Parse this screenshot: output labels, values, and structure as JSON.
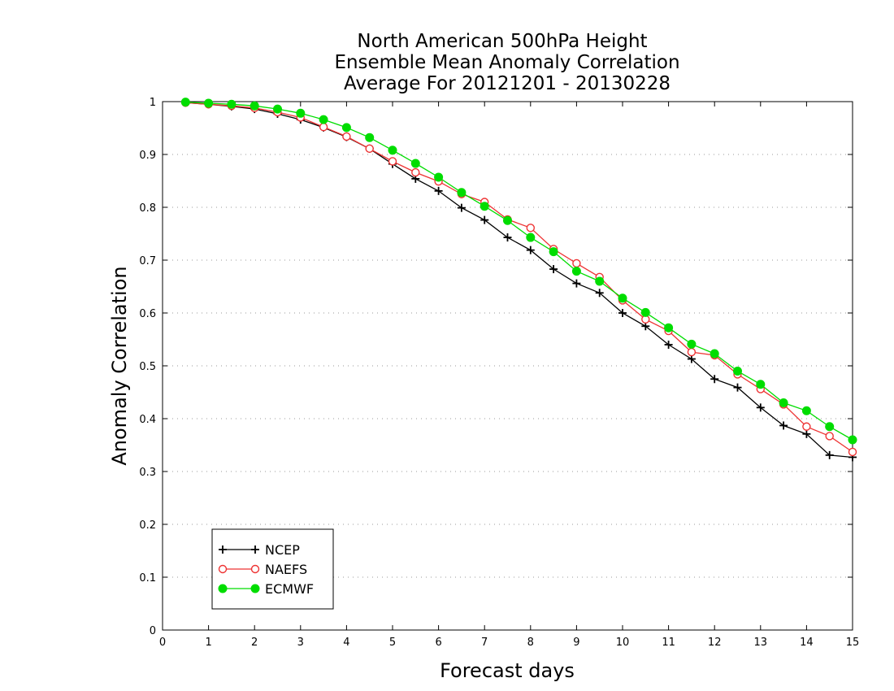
{
  "chart_data": {
    "type": "line",
    "title_lines": [
      "North American 500hPa Height",
      "Ensemble Mean Anomaly Correlation",
      "Average For 20121201 - 20130228"
    ],
    "xlabel": "Forecast days",
    "ylabel": "Anomaly Correlation",
    "xlim": [
      0,
      15
    ],
    "ylim": [
      0,
      1
    ],
    "x_ticks": [
      "0",
      "1",
      "2",
      "3",
      "4",
      "5",
      "6",
      "7",
      "8",
      "9",
      "10",
      "11",
      "12",
      "13",
      "14",
      "15"
    ],
    "y_ticks": [
      "0",
      "0.1",
      "0.2",
      "0.3",
      "0.4",
      "0.5",
      "0.6",
      "0.7",
      "0.8",
      "0.9",
      "1"
    ],
    "grid": "horizontal-dotted",
    "legend_position": "bottom-left",
    "x": [
      0.5,
      1,
      1.5,
      2,
      2.5,
      3,
      3.5,
      4,
      4.5,
      5,
      5.5,
      6,
      6.5,
      7,
      7.5,
      8,
      8.5,
      9,
      9.5,
      10,
      10.5,
      11,
      11.5,
      12,
      12.5,
      13,
      13.5,
      14,
      14.5,
      15
    ],
    "series": [
      {
        "name": "NCEP",
        "color": "#000000",
        "marker": "plus",
        "values": [
          0.998,
          0.995,
          0.991,
          0.986,
          0.977,
          0.966,
          0.951,
          0.933,
          0.911,
          0.882,
          0.854,
          0.831,
          0.799,
          0.776,
          0.743,
          0.719,
          0.683,
          0.656,
          0.638,
          0.6,
          0.575,
          0.54,
          0.513,
          0.475,
          0.459,
          0.421,
          0.387,
          0.371,
          0.331,
          0.327
        ]
      },
      {
        "name": "NAEFS",
        "color": "#ee3333",
        "marker": "open-circle",
        "values": [
          0.998,
          0.995,
          0.992,
          0.988,
          0.98,
          0.97,
          0.952,
          0.934,
          0.911,
          0.887,
          0.866,
          0.849,
          0.825,
          0.81,
          0.777,
          0.761,
          0.721,
          0.694,
          0.668,
          0.624,
          0.588,
          0.566,
          0.526,
          0.52,
          0.484,
          0.456,
          0.427,
          0.385,
          0.367,
          0.337
        ]
      },
      {
        "name": "ECMWF",
        "color": "#00dd00",
        "marker": "filled-circle",
        "values": [
          0.999,
          0.997,
          0.995,
          0.992,
          0.986,
          0.978,
          0.966,
          0.951,
          0.932,
          0.908,
          0.883,
          0.857,
          0.828,
          0.802,
          0.775,
          0.743,
          0.716,
          0.679,
          0.66,
          0.628,
          0.601,
          0.572,
          0.541,
          0.523,
          0.49,
          0.465,
          0.43,
          0.415,
          0.385,
          0.36
        ]
      }
    ]
  }
}
